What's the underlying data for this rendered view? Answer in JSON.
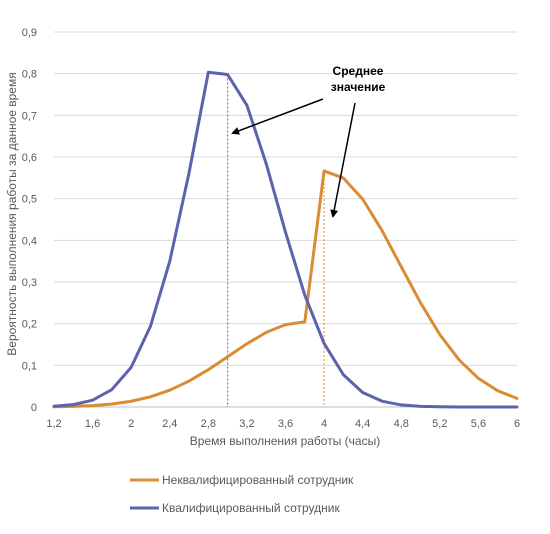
{
  "chart_data": {
    "type": "line",
    "title": "",
    "xlabel": "Время выполнения работы (часы)",
    "ylabel": "Вероятность выполнения работы за данное время",
    "xlim": [
      1.2,
      6
    ],
    "ylim": [
      0,
      0.9
    ],
    "x_ticks": [
      "1,2",
      "1,6",
      "2",
      "2,4",
      "2,8",
      "3,2",
      "3,6",
      "4",
      "4,4",
      "4,8",
      "5,2",
      "5,6",
      "6"
    ],
    "y_ticks": [
      "0",
      "0,1",
      "0,2",
      "0,3",
      "0,4",
      "0,5",
      "0,6",
      "0,7",
      "0,8",
      "0,9"
    ],
    "grid": "horizontal",
    "legend_position": "bottom",
    "annotation": {
      "line1": "Среднее",
      "line2": "значение"
    },
    "series": [
      {
        "name": "Неквалифицированный сотрудник",
        "color": "#D98C34",
        "mean": 4,
        "x": [
          1.2,
          1.4,
          1.6,
          1.8,
          2.0,
          2.2,
          2.4,
          2.6,
          2.8,
          3.0,
          3.2,
          3.4,
          3.6,
          3.8,
          4.0,
          4.2,
          4.4,
          4.6,
          4.8,
          5.0,
          5.2,
          5.4,
          5.6,
          5.8,
          6.0
        ],
        "y": [
          0.0006,
          0.0015,
          0.0034,
          0.0072,
          0.0138,
          0.0245,
          0.0404,
          0.0622,
          0.0895,
          0.1205,
          0.1518,
          0.1791,
          0.1977,
          0.2043,
          0.5665,
          0.5495,
          0.4989,
          0.4237,
          0.3366,
          0.2501,
          0.1737,
          0.1129,
          0.0686,
          0.039,
          0.0207
        ]
      },
      {
        "name": "Квалифицированный сотрудник",
        "color": "#5B63AE",
        "mean": 3,
        "x": [
          1.2,
          1.4,
          1.6,
          1.8,
          2.0,
          2.2,
          2.4,
          2.6,
          2.8,
          3.0,
          3.2,
          3.4,
          3.6,
          3.8,
          4.0,
          4.2,
          4.4,
          4.6,
          4.8,
          5.0,
          5.2,
          5.4,
          5.6,
          5.8,
          6.0
        ],
        "y": [
          0.0018,
          0.0057,
          0.0164,
          0.0419,
          0.0954,
          0.1937,
          0.3497,
          0.562,
          0.8035,
          0.7979,
          0.724,
          0.584,
          0.4196,
          0.2683,
          0.1527,
          0.0774,
          0.0349,
          0.014,
          0.005,
          0.0016,
          0.0005,
          0.0001,
          0.0,
          0.0,
          0.0
        ]
      }
    ]
  }
}
